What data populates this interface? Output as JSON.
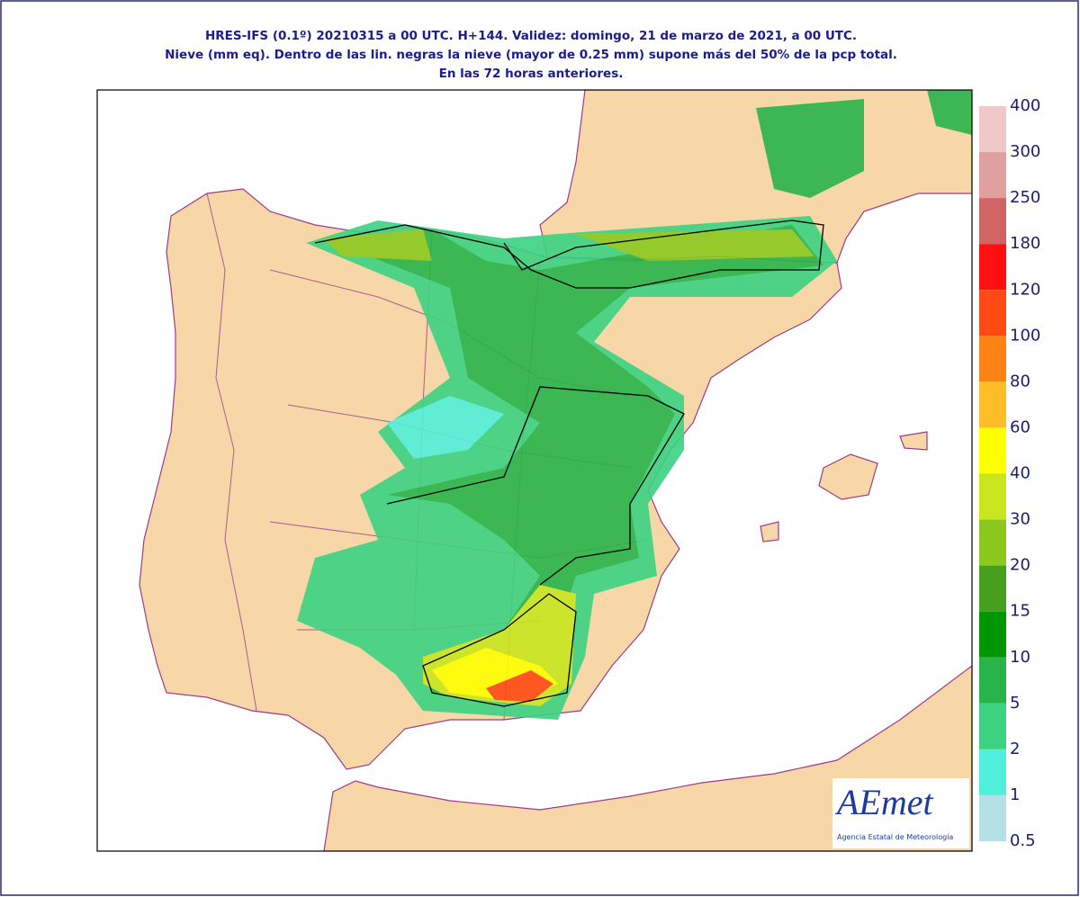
{
  "header": {
    "lines": [
      "HRES-IFS (0.1º) 20210315 a 00 UTC.  H+144. Validez: domingo, 21 de marzo de 2021,  a  00 UTC.",
      "Nieve (mm eq). Dentro de las lin. negras la nieve (mayor de 0.25 mm) supone más del 50% de la pcp total.",
      "En las 72 horas anteriores."
    ]
  },
  "colorbar": {
    "levels": [
      400,
      300,
      250,
      180,
      120,
      100,
      80,
      60,
      40,
      30,
      20,
      15,
      10,
      5,
      2,
      1,
      0.5
    ],
    "colors": [
      "#f0c8c8",
      "#e0a0a0",
      "#d06464",
      "#ff1010",
      "#ff4a14",
      "#ff8214",
      "#ffbe28",
      "#ffff00",
      "#c8e61e",
      "#8cc81e",
      "#46a01e",
      "#009600",
      "#28b44a",
      "#3cd282",
      "#50f0dc",
      "#b4e1e6"
    ]
  },
  "logo": {
    "name": "AEmet",
    "subtitle": "Agencia Estatal de Meteorología"
  }
}
